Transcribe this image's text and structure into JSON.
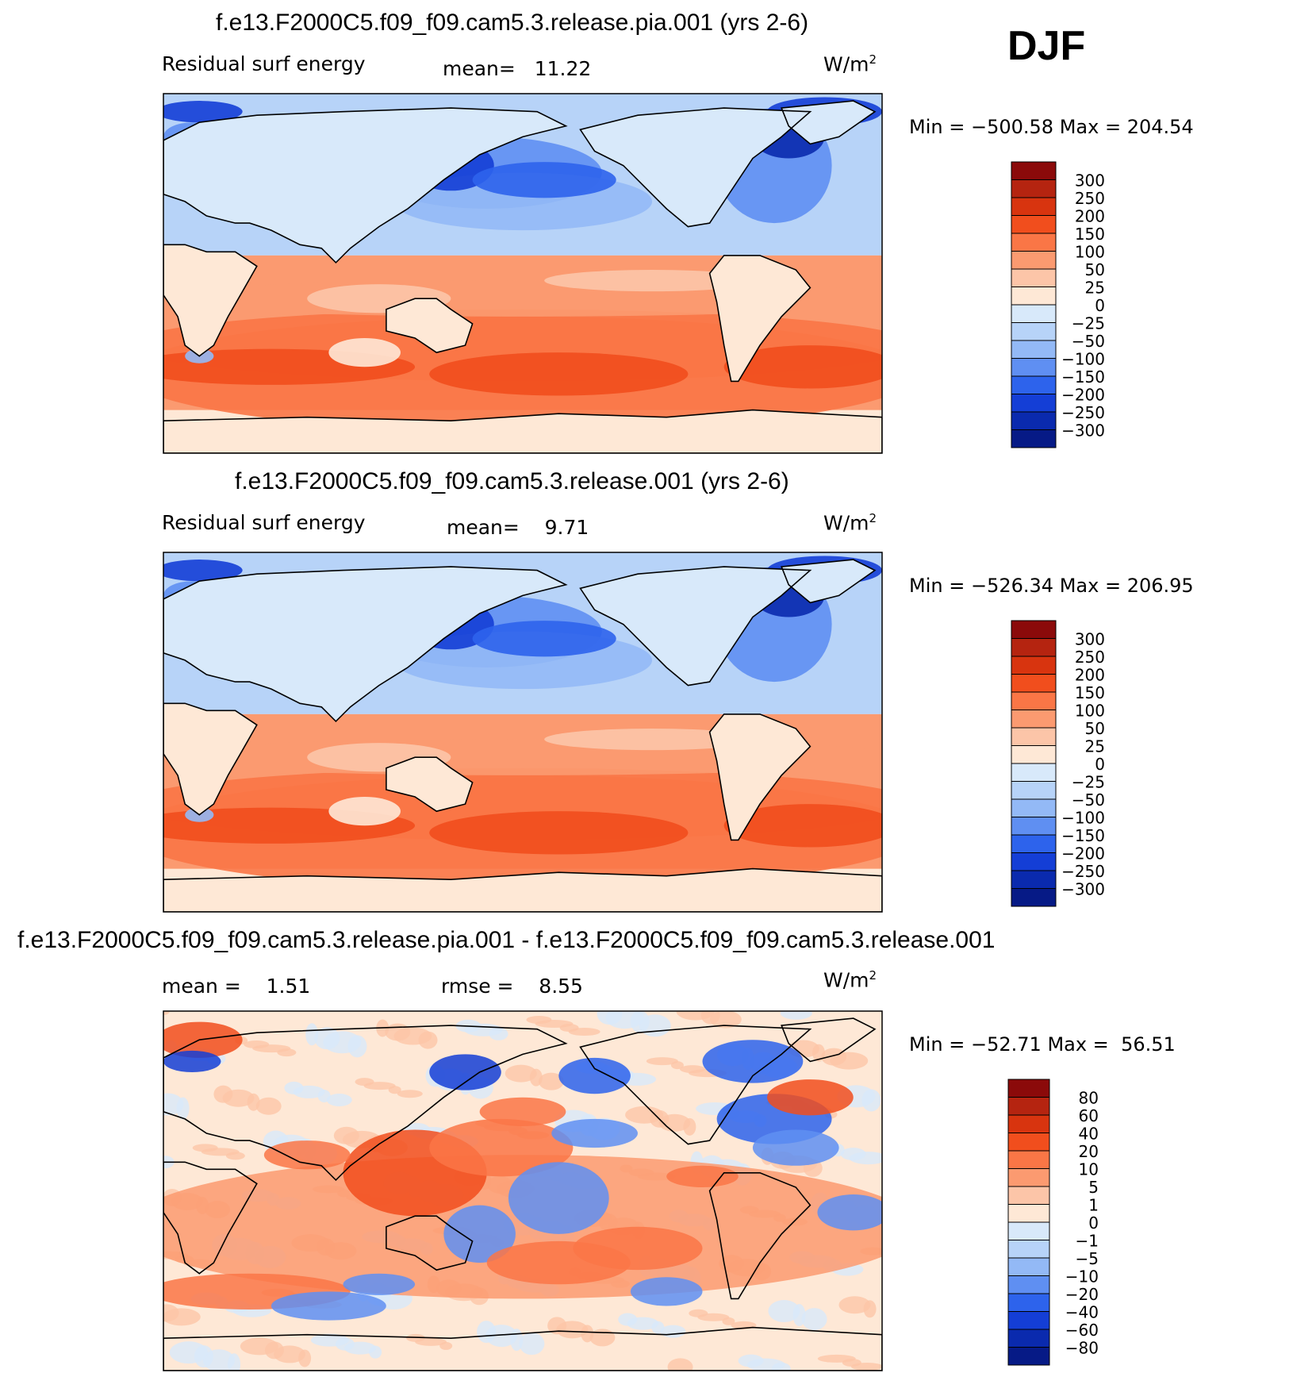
{
  "season": "DJF",
  "chart_data": [
    {
      "type": "heatmap",
      "title": "f.e13.F2000C5.f09_f09.cam5.3.release.pia.001 (yrs 2-6)",
      "variable": "Residual surf energy",
      "mean_label": "mean=",
      "mean": "11.22",
      "units": "W/m",
      "units_exp": "2",
      "min_label": "Min =",
      "min": "−500.58",
      "max_label": "Max =",
      "max": "204.54",
      "levels": [
        "300",
        "250",
        "200",
        "150",
        "100",
        "50",
        "25",
        "0",
        "−25",
        "−50",
        "−100",
        "−150",
        "−200",
        "−250",
        "−300"
      ],
      "colors": [
        "#8b0a0a",
        "#b52410",
        "#d8340f",
        "#f14e1d",
        "#fa7646",
        "#fb9a70",
        "#fcc5a8",
        "#fee8d6",
        "#d8e9fa",
        "#b7d3f8",
        "#93b9f6",
        "#5f8ff2",
        "#2d63ec",
        "#143ed6",
        "#0a2aae",
        "#061a86"
      ]
    },
    {
      "type": "heatmap",
      "title": "f.e13.F2000C5.f09_f09.cam5.3.release.001 (yrs 2-6)",
      "variable": "Residual surf energy",
      "mean_label": "mean=",
      "mean": "9.71",
      "units": "W/m",
      "units_exp": "2",
      "min_label": "Min =",
      "min": "−526.34",
      "max_label": "Max =",
      "max": "206.95",
      "levels": [
        "300",
        "250",
        "200",
        "150",
        "100",
        "50",
        "25",
        "0",
        "−25",
        "−50",
        "−100",
        "−150",
        "−200",
        "−250",
        "−300"
      ],
      "colors": [
        "#8b0a0a",
        "#b52410",
        "#d8340f",
        "#f14e1d",
        "#fa7646",
        "#fb9a70",
        "#fcc5a8",
        "#fee8d6",
        "#d8e9fa",
        "#b7d3f8",
        "#93b9f6",
        "#5f8ff2",
        "#2d63ec",
        "#143ed6",
        "#0a2aae",
        "#061a86"
      ]
    },
    {
      "type": "heatmap",
      "title": "f.e13.F2000C5.f09_f09.cam5.3.release.pia.001 - f.e13.F2000C5.f09_f09.cam5.3.release.001",
      "mean_label": "mean =",
      "mean": "1.51",
      "rmse_label": "rmse =",
      "rmse": "8.55",
      "units": "W/m",
      "units_exp": "2",
      "min_label": "Min =",
      "min": "−52.71",
      "max_label": "Max =",
      "max": "56.51",
      "levels": [
        "80",
        "60",
        "40",
        "20",
        "10",
        "5",
        "1",
        "0",
        "−1",
        "−5",
        "−10",
        "−20",
        "−40",
        "−60",
        "−80"
      ],
      "colors": [
        "#8b0a0a",
        "#b52410",
        "#d8340f",
        "#f14e1d",
        "#fa7646",
        "#fb9a70",
        "#fcc5a8",
        "#fee8d6",
        "#d8e9fa",
        "#b7d3f8",
        "#93b9f6",
        "#5f8ff2",
        "#2d63ec",
        "#143ed6",
        "#0a2aae",
        "#061a86"
      ]
    }
  ]
}
